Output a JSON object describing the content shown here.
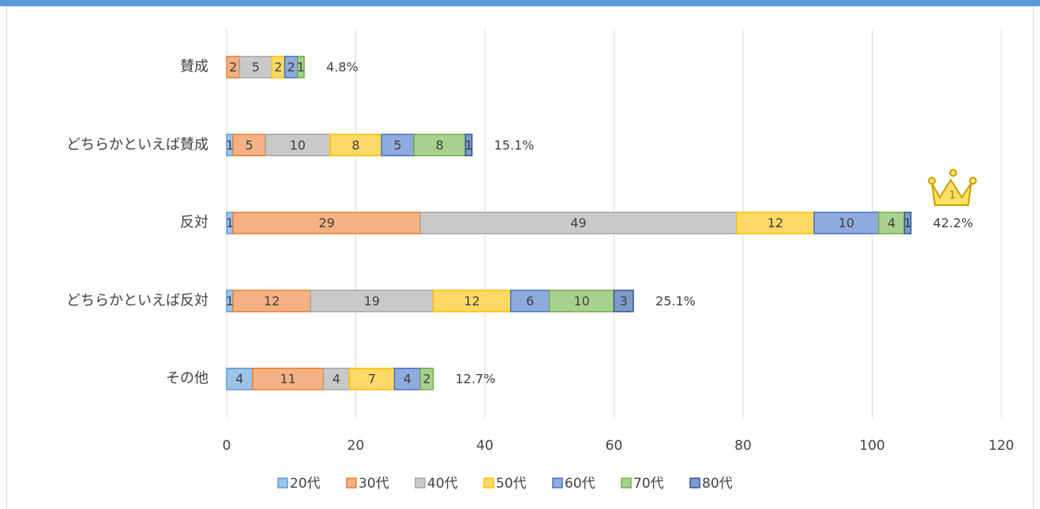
{
  "chart_data": {
    "type": "stacked_barh",
    "categories": [
      "賛成",
      "どちらかといえば賛成",
      "反対",
      "どちらかといえば反対",
      "その他"
    ],
    "series": [
      {
        "name": "20代",
        "color": "#9dc3e6",
        "edge": "#5b9bd5",
        "values": [
          0,
          1,
          1,
          1,
          4
        ]
      },
      {
        "name": "30代",
        "color": "#f4b183",
        "edge": "#ed7d31",
        "values": [
          2,
          5,
          29,
          12,
          11
        ]
      },
      {
        "name": "40代",
        "color": "#c9c9c9",
        "edge": "#a5a5a5",
        "values": [
          5,
          10,
          49,
          19,
          4
        ]
      },
      {
        "name": "50代",
        "color": "#ffd966",
        "edge": "#ffc000",
        "values": [
          2,
          8,
          12,
          12,
          7
        ]
      },
      {
        "name": "60代",
        "color": "#8faadc",
        "edge": "#4472c4",
        "values": [
          2,
          5,
          10,
          6,
          4
        ]
      },
      {
        "name": "70代",
        "color": "#a9d18e",
        "edge": "#70ad47",
        "values": [
          1,
          8,
          4,
          10,
          2
        ]
      },
      {
        "name": "80代",
        "color": "#7f9cc8",
        "edge": "#2f5597",
        "values": [
          0,
          1,
          1,
          3,
          0
        ]
      }
    ],
    "percent_labels": [
      "4.8%",
      "15.1%",
      "42.2%",
      "25.1%",
      "12.7%"
    ],
    "badge": "1",
    "xlim": [
      0,
      120
    ],
    "xticks": [
      0,
      20,
      40,
      60,
      80,
      100,
      120
    ],
    "grid": true,
    "legend": "bottom"
  }
}
